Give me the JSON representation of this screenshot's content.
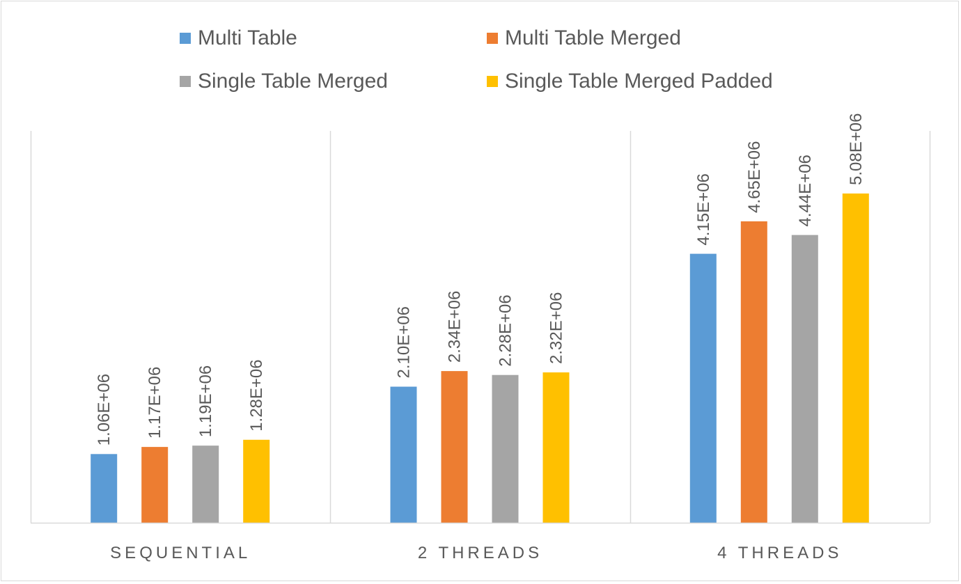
{
  "chart_data": {
    "type": "bar",
    "categories": [
      "SEQUENTIAL",
      "2 THREADS",
      "4 THREADS"
    ],
    "series": [
      {
        "name": "Multi Table",
        "color": "#5b9bd5",
        "values": [
          1060000,
          2100000,
          4150000
        ],
        "labels": [
          "1.06E+06",
          "2.10E+06",
          "4.15E+06"
        ]
      },
      {
        "name": "Multi Table Merged",
        "color": "#ed7d31",
        "values": [
          1170000,
          2340000,
          4650000
        ],
        "labels": [
          "1.17E+06",
          "2.34E+06",
          "4.65E+06"
        ]
      },
      {
        "name": "Single Table Merged",
        "color": "#a5a5a5",
        "values": [
          1190000,
          2280000,
          4440000
        ],
        "labels": [
          "1.19E+06",
          "2.28E+06",
          "4.44E+06"
        ]
      },
      {
        "name": "Single Table Merged Padded",
        "color": "#ffc000",
        "values": [
          1280000,
          2320000,
          5080000
        ],
        "labels": [
          "1.28E+06",
          "2.32E+06",
          "5.08E+06"
        ]
      }
    ],
    "ylim": [
      0,
      6000000
    ],
    "legend_position": "top",
    "grid": "vertical category separators"
  }
}
